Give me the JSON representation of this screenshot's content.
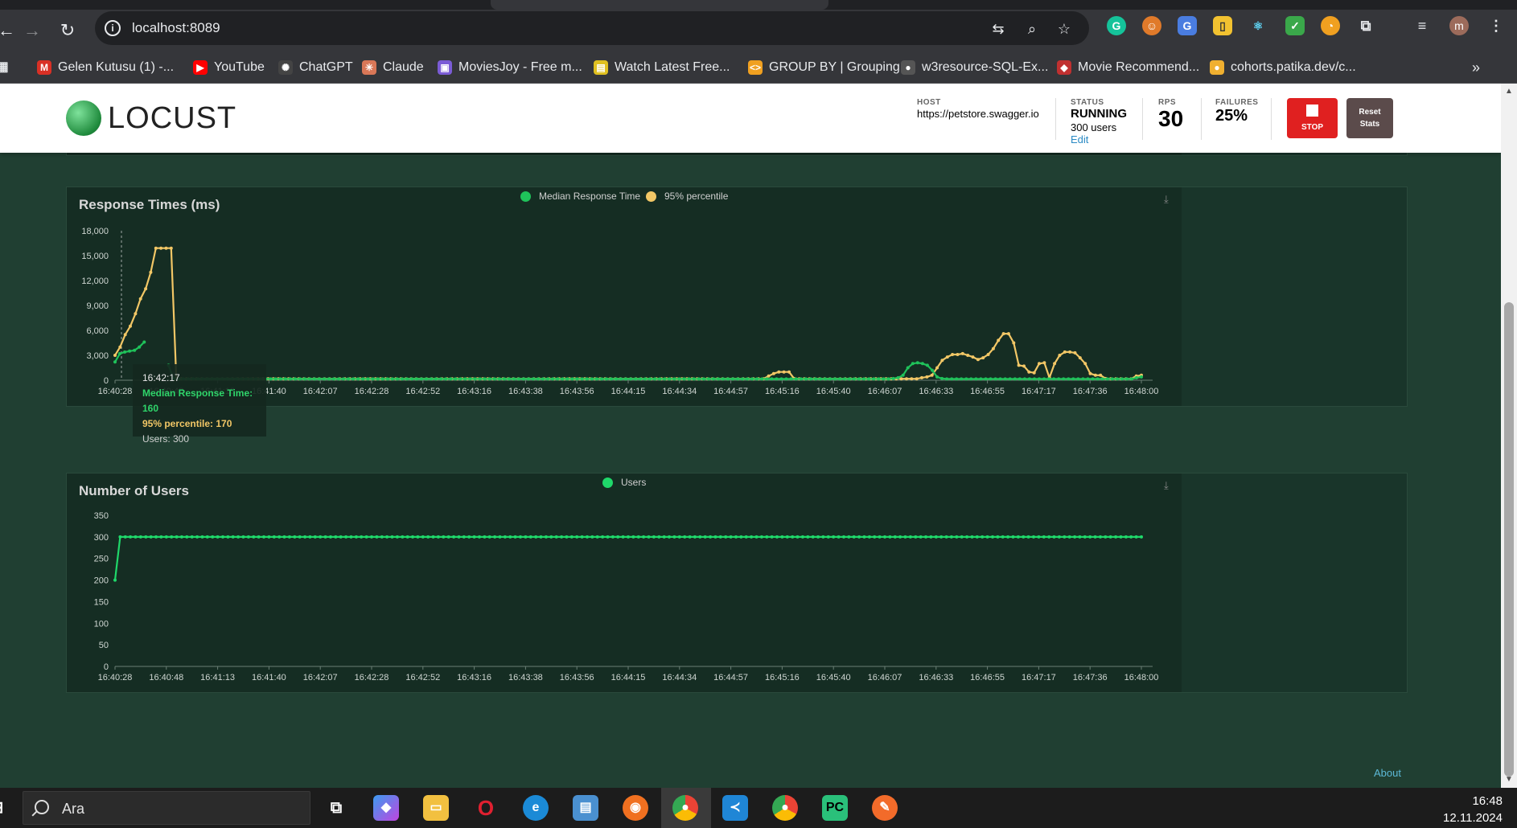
{
  "browser": {
    "url": "localhost:8089",
    "bookmarks": [
      {
        "label": "Gelen Kutusu (1) -...",
        "icon": "gmail-icon",
        "color": "#d93025",
        "glyph": "M"
      },
      {
        "label": "YouTube",
        "icon": "youtube-icon",
        "color": "#ff0000",
        "glyph": "▶"
      },
      {
        "label": "ChatGPT",
        "icon": "chatgpt-icon",
        "color": "#444444",
        "glyph": "✺"
      },
      {
        "label": "Claude",
        "icon": "claude-icon",
        "color": "#d97757",
        "glyph": "✳"
      },
      {
        "label": "MoviesJoy - Free m...",
        "icon": "moviesjoy-icon",
        "color": "#7b5cd6",
        "glyph": "▣"
      },
      {
        "label": "Watch Latest Free...",
        "icon": "watch-icon",
        "color": "#e0c020",
        "glyph": "▤"
      },
      {
        "label": "GROUP BY | Grouping",
        "icon": "code-icon",
        "color": "#f0a020",
        "glyph": "<>"
      },
      {
        "label": "w3resource-SQL-Ex...",
        "icon": "github-icon",
        "color": "#555555",
        "glyph": "●"
      },
      {
        "label": "Movie Recommend...",
        "icon": "movie-icon",
        "color": "#c03030",
        "glyph": "◆"
      },
      {
        "label": "cohorts.patika.dev/c...",
        "icon": "patika-icon",
        "color": "#f0b030",
        "glyph": "●"
      }
    ],
    "profile_initial": "m"
  },
  "header": {
    "logo_text": "LOCUST",
    "host_label": "HOST",
    "host_value": "https://petstore.swagger.io",
    "status_label": "STATUS",
    "status_value": "RUNNING",
    "users_value": "300 users",
    "edit_label": "Edit",
    "rps_label": "RPS",
    "rps_value": "30",
    "failures_label": "FAILURES",
    "failures_value": "25%",
    "stop_label": "STOP",
    "reset_label_1": "Reset",
    "reset_label_2": "Stats"
  },
  "tooltip": {
    "time": "16:42:17",
    "median": "Median Response Time: 160",
    "p95": "95% percentile: 170",
    "users": "Users: 300"
  },
  "footer": {
    "about_label": "About"
  },
  "taskbar": {
    "search_placeholder": "Ara",
    "time": "16:48",
    "date": "12.11.2024"
  },
  "colors": {
    "median": "#1fc25a",
    "p95": "#f2c766",
    "users": "#1fd86a"
  },
  "chart_data": [
    {
      "type": "line",
      "title": "Response Times (ms)",
      "x_ticks": [
        "16:40:28",
        "16:40:48",
        "16:41:13",
        "16:41:40",
        "16:42:07",
        "16:42:28",
        "16:42:52",
        "16:43:16",
        "16:43:38",
        "16:43:56",
        "16:44:15",
        "16:44:34",
        "16:44:57",
        "16:45:16",
        "16:45:40",
        "16:46:07",
        "16:46:33",
        "16:46:55",
        "16:47:17",
        "16:47:36",
        "16:48:00"
      ],
      "y_ticks": [
        "0",
        "3,000",
        "6,000",
        "9,000",
        "12,000",
        "15,000",
        "18,000"
      ],
      "ylim": [
        0,
        18000
      ],
      "legend": [
        "Median Response Time",
        "95% percentile"
      ],
      "series": [
        {
          "name": "Median Response Time",
          "values": [
            2200,
            3200,
            3400,
            3500,
            3600,
            4000,
            4600,
            null,
            null,
            null,
            null,
            1800,
            200,
            150,
            150,
            150,
            160,
            150,
            150,
            150,
            150,
            150,
            150,
            150,
            150,
            150,
            150,
            150,
            150,
            150,
            150,
            150,
            150,
            150,
            150,
            150,
            150,
            150,
            150,
            150,
            150,
            150,
            150,
            150,
            150,
            150,
            150,
            150,
            150,
            150,
            150,
            150,
            150,
            150,
            150,
            150,
            150,
            150,
            150,
            150,
            150,
            150,
            150,
            150,
            150,
            150,
            150,
            150,
            150,
            150,
            150,
            150,
            150,
            150,
            150,
            150,
            150,
            150,
            150,
            150,
            150,
            150,
            150,
            150,
            150,
            150,
            150,
            150,
            150,
            150,
            150,
            150,
            150,
            150,
            150,
            150,
            150,
            150,
            150,
            150,
            150,
            150,
            150,
            150,
            150,
            150,
            150,
            150,
            150,
            150,
            150,
            150,
            150,
            150,
            150,
            150,
            150,
            150,
            150,
            150,
            150,
            150,
            150,
            150,
            150,
            150,
            150,
            150,
            150,
            150,
            150,
            150,
            150,
            150,
            150,
            150,
            150,
            150,
            150,
            150,
            150,
            150,
            150,
            150,
            150,
            150,
            150,
            150,
            150,
            150,
            150,
            150,
            150,
            150,
            150,
            150,
            150,
            150,
            150,
            150,
            200,
            300,
            600,
            1500,
            2000,
            2100,
            2000,
            1800,
            1200,
            400,
            200,
            150,
            150,
            150,
            150,
            150,
            150,
            150,
            150,
            150,
            150,
            150,
            150,
            150,
            150,
            150,
            150,
            150,
            150,
            150,
            150,
            150,
            150,
            150,
            150,
            150,
            150,
            150,
            150,
            150,
            150,
            150,
            150,
            150,
            150,
            150,
            150,
            150,
            150,
            150,
            300,
            400
          ]
        },
        {
          "name": "95% percentile",
          "values": [
            3000,
            4000,
            5500,
            6500,
            8000,
            9800,
            11000,
            13000,
            15900,
            15900,
            15900,
            15900,
            170,
            170,
            170,
            170,
            170,
            170,
            170,
            170,
            170,
            170,
            170,
            170,
            170,
            170,
            170,
            170,
            170,
            170,
            170,
            170,
            170,
            170,
            170,
            170,
            170,
            170,
            170,
            170,
            170,
            170,
            170,
            170,
            170,
            170,
            170,
            170,
            170,
            170,
            170,
            170,
            170,
            170,
            170,
            170,
            170,
            170,
            170,
            170,
            170,
            170,
            170,
            170,
            170,
            170,
            170,
            170,
            170,
            170,
            170,
            170,
            170,
            170,
            170,
            170,
            170,
            170,
            170,
            170,
            170,
            170,
            170,
            170,
            170,
            170,
            170,
            170,
            170,
            170,
            170,
            170,
            170,
            170,
            170,
            170,
            170,
            170,
            170,
            170,
            170,
            170,
            170,
            170,
            170,
            170,
            170,
            170,
            170,
            170,
            170,
            170,
            170,
            170,
            170,
            170,
            170,
            170,
            170,
            170,
            170,
            170,
            170,
            170,
            170,
            170,
            170,
            170,
            500,
            800,
            1000,
            1000,
            1000,
            200,
            170,
            170,
            170,
            170,
            170,
            170,
            170,
            170,
            170,
            170,
            170,
            170,
            170,
            170,
            170,
            170,
            170,
            170,
            170,
            170,
            170,
            170,
            170,
            170,
            300,
            400,
            600,
            1500,
            2400,
            2800,
            3100,
            3100,
            3200,
            3000,
            2800,
            2500,
            2700,
            3100,
            3800,
            4800,
            5600,
            5600,
            4500,
            1800,
            1700,
            1000,
            900,
            2000,
            2100,
            300,
            2000,
            3000,
            3400,
            3400,
            3300,
            2700,
            2000,
            800,
            600,
            600,
            200,
            170,
            170,
            170,
            170,
            170,
            500,
            600
          ]
        }
      ]
    },
    {
      "type": "line",
      "title": "Number of Users",
      "x_ticks": [
        "16:40:28",
        "16:40:48",
        "16:41:13",
        "16:41:40",
        "16:42:07",
        "16:42:28",
        "16:42:52",
        "16:43:16",
        "16:43:38",
        "16:43:56",
        "16:44:15",
        "16:44:34",
        "16:44:57",
        "16:45:16",
        "16:45:40",
        "16:46:07",
        "16:46:33",
        "16:46:55",
        "16:47:17",
        "16:47:36",
        "16:48:00"
      ],
      "y_ticks": [
        "0",
        "50",
        "100",
        "150",
        "200",
        "250",
        "300",
        "350"
      ],
      "ylim": [
        0,
        350
      ],
      "legend": [
        "Users"
      ],
      "series": [
        {
          "name": "Users",
          "first": 200,
          "rest": 300
        }
      ]
    }
  ]
}
